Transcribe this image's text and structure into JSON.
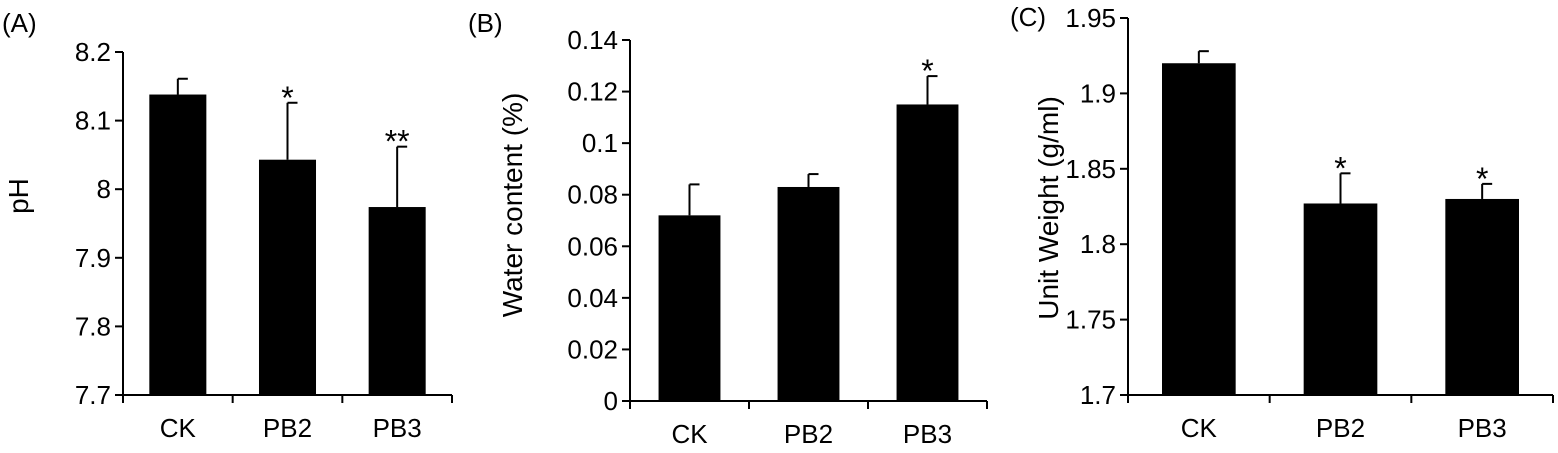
{
  "chart_data": [
    {
      "type": "bar",
      "panel_label": "(A)",
      "title": "",
      "xlabel": "",
      "ylabel": "pH",
      "categories": [
        "CK",
        "PB2",
        "PB3"
      ],
      "values": [
        8.138,
        8.043,
        7.974
      ],
      "errors": [
        0.023,
        0.083,
        0.088
      ],
      "significance": [
        "",
        "*",
        "**"
      ],
      "ylim": [
        7.7,
        8.2
      ],
      "yticks": [
        7.7,
        7.8,
        7.9,
        8.0,
        8.1,
        8.2
      ],
      "ytick_labels": [
        "7.7",
        "7.8",
        "7.9",
        "8",
        "8.1",
        "8.2"
      ],
      "bar_color": "#000000",
      "grid": false,
      "legend": "none"
    },
    {
      "type": "bar",
      "panel_label": "(B)",
      "title": "",
      "xlabel": "",
      "ylabel": "Water content (%)",
      "categories": [
        "CK",
        "PB2",
        "PB3"
      ],
      "values": [
        0.072,
        0.083,
        0.115
      ],
      "errors": [
        0.012,
        0.005,
        0.011
      ],
      "significance": [
        "",
        "",
        "*"
      ],
      "ylim": [
        0,
        0.14
      ],
      "yticks": [
        0,
        0.02,
        0.04,
        0.06,
        0.08,
        0.1,
        0.12,
        0.14
      ],
      "ytick_labels": [
        "0",
        "0.02",
        "0.04",
        "0.06",
        "0.08",
        "0.1",
        "0.12",
        "0.14"
      ],
      "bar_color": "#000000",
      "grid": false,
      "legend": "none"
    },
    {
      "type": "bar",
      "panel_label": "(C)",
      "title": "",
      "xlabel": "",
      "ylabel": "Unit Weight (g/ml)",
      "categories": [
        "CK",
        "PB2",
        "PB3"
      ],
      "values": [
        1.92,
        1.827,
        1.83
      ],
      "errors": [
        0.008,
        0.02,
        0.01
      ],
      "significance": [
        "",
        "*",
        "*"
      ],
      "ylim": [
        1.7,
        1.95
      ],
      "yticks": [
        1.7,
        1.75,
        1.8,
        1.85,
        1.9,
        1.95
      ],
      "ytick_labels": [
        "1.7",
        "1.75",
        "1.8",
        "1.85",
        "1.9",
        "1.95"
      ],
      "bar_color": "#000000",
      "grid": false,
      "legend": "none"
    }
  ]
}
